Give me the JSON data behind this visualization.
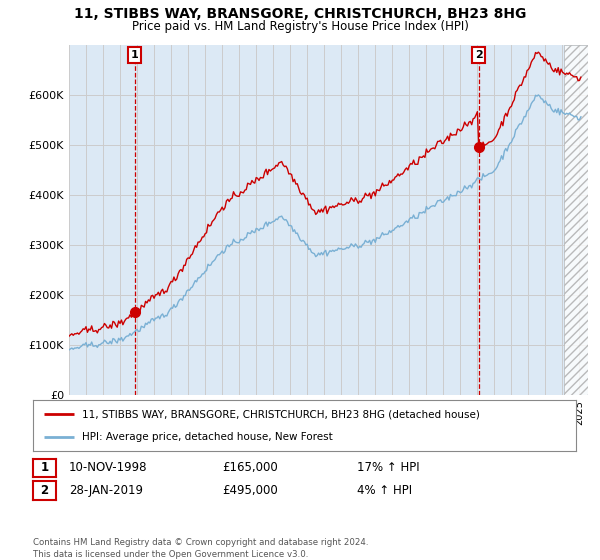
{
  "title": "11, STIBBS WAY, BRANSGORE, CHRISTCHURCH, BH23 8HG",
  "subtitle": "Price paid vs. HM Land Registry's House Price Index (HPI)",
  "legend_line1": "11, STIBBS WAY, BRANSGORE, CHRISTCHURCH, BH23 8HG (detached house)",
  "legend_line2": "HPI: Average price, detached house, New Forest",
  "purchase1_label": "1",
  "purchase1_date": "10-NOV-1998",
  "purchase1_price": "£165,000",
  "purchase1_hpi": "17% ↑ HPI",
  "purchase2_label": "2",
  "purchase2_date": "28-JAN-2019",
  "purchase2_price": "£495,000",
  "purchase2_hpi": "4% ↑ HPI",
  "footer": "Contains HM Land Registry data © Crown copyright and database right 2024.\nThis data is licensed under the Open Government Licence v3.0.",
  "ylim": [
    0,
    700000
  ],
  "yticks": [
    0,
    100000,
    200000,
    300000,
    400000,
    500000,
    600000
  ],
  "ytick_labels": [
    "£0",
    "£100K",
    "£200K",
    "£300K",
    "£400K",
    "£500K",
    "£600K"
  ],
  "hpi_color": "#7ab0d4",
  "price_color": "#cc0000",
  "purchase_marker_color": "#cc0000",
  "vline_color": "#cc0000",
  "grid_color": "#cccccc",
  "bg_color": "#ffffff",
  "chart_bg_color": "#dce9f5",
  "purchase1_x": 1998.86,
  "purchase1_y": 165000,
  "purchase2_x": 2019.08,
  "purchase2_y": 495000,
  "xlim_start": 1995.0,
  "xlim_end": 2025.5
}
